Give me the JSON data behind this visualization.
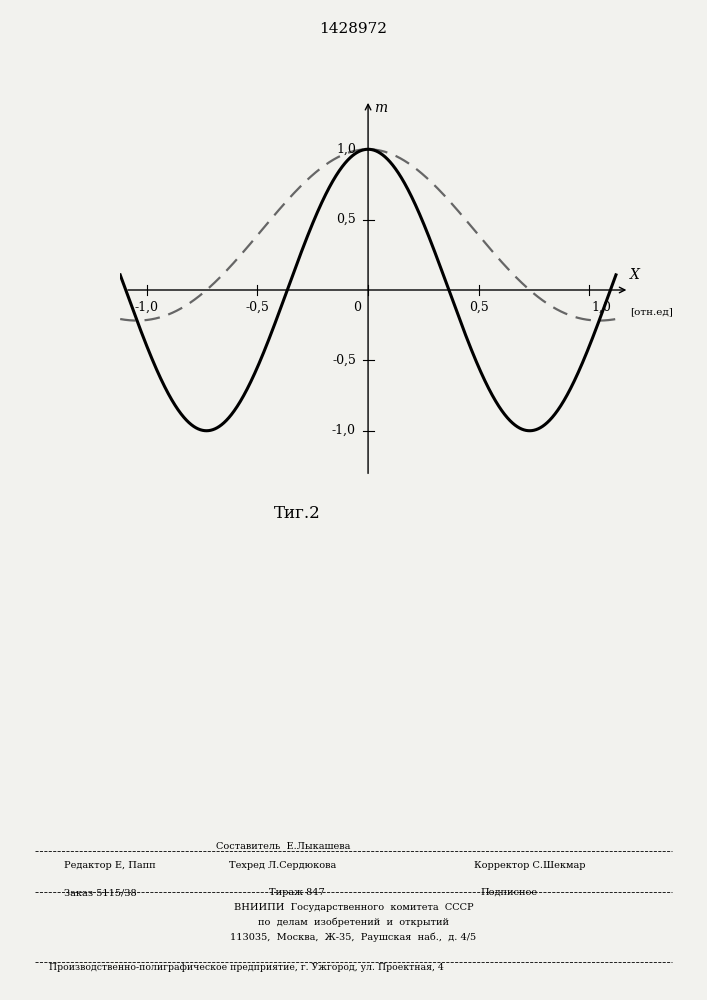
{
  "patent_number": "1428972",
  "fig_label": "Τиг.2",
  "x_label": "X",
  "x_unit_label": "[отн.ед]",
  "y_label": "m",
  "x_tick_labels": [
    "-1,0",
    "-0,5",
    "0",
    "0,5",
    "1,0"
  ],
  "x_tick_vals": [
    -1.0,
    -0.5,
    0.0,
    0.5,
    1.0
  ],
  "y_tick_labels": [
    "1,0",
    "0,5",
    "-0,5",
    "-1,0"
  ],
  "y_tick_vals": [
    1.0,
    0.5,
    -0.5,
    -1.0
  ],
  "xlim": [
    -1.12,
    1.18
  ],
  "ylim": [
    -1.35,
    1.35
  ],
  "solid_color": "#000000",
  "dashed_color": "#666666",
  "linewidth_solid": 2.2,
  "linewidth_dashed": 1.6,
  "background_color": "#f2f2ee",
  "title_text": "1428972",
  "footer_line1": "Составитель  Е.Лыкашева",
  "footer_line2_left": "Редактор Е, Папп",
  "footer_line2_mid": "Техред Л.Сердюкова",
  "footer_line2_right": "Корректор С.Шекмар",
  "footer_line3_left": "Заказ 5115/38",
  "footer_line3_mid": "Тираж 847",
  "footer_line3_right": "Подписное",
  "footer_line4": "ВНИИПИ  Государственного  комитета  СССР",
  "footer_line5": "по  делам  изобретений  и  открытий",
  "footer_line6": "113035,  Москва,  Ж-35,  Раушская  наб.,  д. 4/5",
  "footer_line7": "Производственно-полиграфическое предприятие, г. Ужгород, ул. Проектная, 4"
}
